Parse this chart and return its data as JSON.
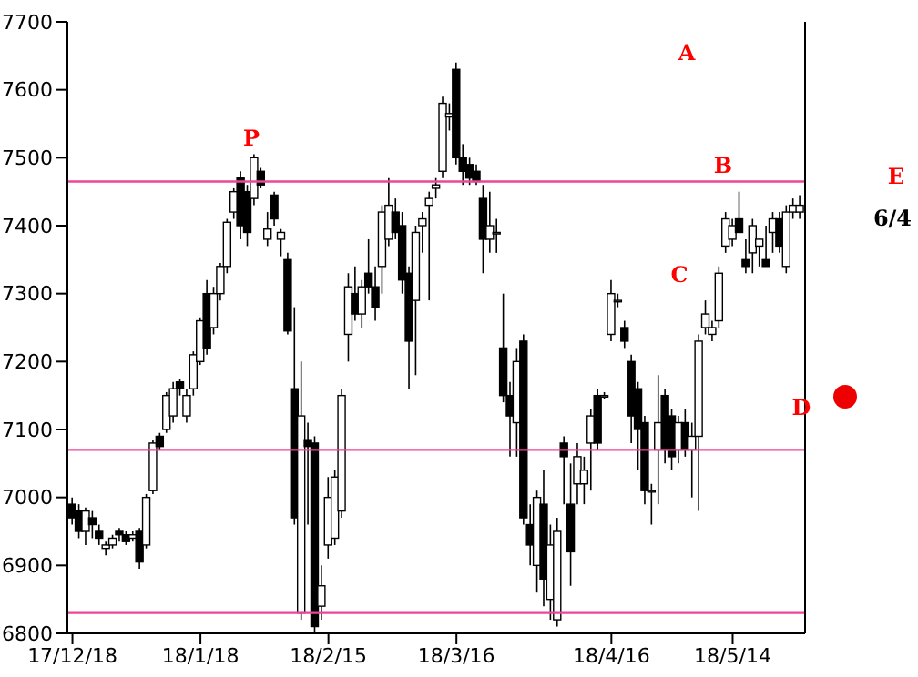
{
  "chart_data": {
    "type": "candlestick",
    "categories": [
      "17/12/18",
      null,
      null,
      null,
      null,
      null,
      null,
      null,
      null,
      null,
      null,
      null,
      null,
      null,
      null,
      null,
      null,
      null,
      null,
      "18/1/18",
      null,
      null,
      null,
      null,
      null,
      null,
      null,
      null,
      null,
      null,
      null,
      null,
      null,
      null,
      null,
      null,
      null,
      null,
      "18/2/15",
      null,
      null,
      null,
      null,
      null,
      null,
      null,
      null,
      null,
      null,
      null,
      null,
      null,
      null,
      null,
      null,
      null,
      null,
      "18/3/16",
      null,
      null,
      null,
      null,
      null,
      null,
      null,
      null,
      null,
      null,
      null,
      null,
      null,
      null,
      null,
      null,
      null,
      null,
      null,
      null,
      null,
      null,
      "18/4/16",
      null,
      null,
      null,
      null,
      null,
      null,
      null,
      null,
      null,
      null,
      null,
      null,
      null,
      null,
      null,
      null,
      null,
      "18/5/14",
      null,
      null,
      null,
      null,
      null,
      null,
      null,
      null,
      null,
      null
    ],
    "ohlc": [
      [
        6990,
        7000,
        6960,
        6970
      ],
      [
        6980,
        6990,
        6940,
        6950
      ],
      [
        6950,
        6985,
        6930,
        6980
      ],
      [
        6970,
        6980,
        6940,
        6960
      ],
      [
        6950,
        6960,
        6930,
        6940
      ],
      [
        6925,
        6935,
        6915,
        6930
      ],
      [
        6930,
        6945,
        6925,
        6940
      ],
      [
        6950,
        6955,
        6935,
        6945
      ],
      [
        6945,
        6950,
        6930,
        6935
      ],
      [
        6940,
        6950,
        6935,
        6945
      ],
      [
        6950,
        6955,
        6895,
        6905
      ],
      [
        6930,
        7005,
        6925,
        7000
      ],
      [
        7010,
        7085,
        7005,
        7080
      ],
      [
        7090,
        7095,
        7070,
        7075
      ],
      [
        7100,
        7155,
        7095,
        7150
      ],
      [
        7120,
        7170,
        7110,
        7160
      ],
      [
        7170,
        7175,
        7150,
        7160
      ],
      [
        7120,
        7160,
        7110,
        7150
      ],
      [
        7160,
        7215,
        7150,
        7210
      ],
      [
        7200,
        7265,
        7195,
        7260
      ],
      [
        7300,
        7320,
        7210,
        7220
      ],
      [
        7250,
        7310,
        7240,
        7300
      ],
      [
        7300,
        7345,
        7290,
        7340
      ],
      [
        7340,
        7410,
        7330,
        7405
      ],
      [
        7420,
        7455,
        7410,
        7450
      ],
      [
        7470,
        7480,
        7380,
        7400
      ],
      [
        7450,
        7460,
        7370,
        7390
      ],
      [
        7440,
        7505,
        7430,
        7500
      ],
      [
        7480,
        7485,
        7455,
        7460
      ],
      [
        7380,
        7420,
        7370,
        7395
      ],
      [
        7445,
        7450,
        7400,
        7410
      ],
      [
        7380,
        7395,
        7355,
        7390
      ],
      [
        7350,
        7360,
        7240,
        7245
      ],
      [
        7160,
        7280,
        6960,
        6970
      ],
      [
        6830,
        7200,
        6820,
        7120
      ],
      [
        7085,
        7110,
        6960,
        7075
      ],
      [
        7080,
        7090,
        6800,
        6810
      ],
      [
        6840,
        6900,
        6820,
        6870
      ],
      [
        6930,
        7030,
        6910,
        7000
      ],
      [
        6940,
        7040,
        6930,
        7030
      ],
      [
        6980,
        7160,
        6970,
        7150
      ],
      [
        7240,
        7330,
        7200,
        7310
      ],
      [
        7300,
        7340,
        7260,
        7270
      ],
      [
        7270,
        7320,
        7250,
        7310
      ],
      [
        7330,
        7380,
        7300,
        7310
      ],
      [
        7310,
        7340,
        7260,
        7280
      ],
      [
        7340,
        7430,
        7300,
        7420
      ],
      [
        7380,
        7470,
        7370,
        7430
      ],
      [
        7420,
        7440,
        7380,
        7390
      ],
      [
        7400,
        7420,
        7300,
        7320
      ],
      [
        7330,
        7340,
        7160,
        7230
      ],
      [
        7290,
        7400,
        7180,
        7390
      ],
      [
        7400,
        7420,
        7360,
        7410
      ],
      [
        7430,
        7450,
        7290,
        7440
      ],
      [
        7455,
        7470,
        7440,
        7460
      ],
      [
        7480,
        7590,
        7470,
        7580
      ],
      [
        7560,
        7580,
        7540,
        7565
      ],
      [
        7630,
        7640,
        7490,
        7500
      ],
      [
        7500,
        7520,
        7460,
        7480
      ],
      [
        7490,
        7500,
        7460,
        7470
      ],
      [
        7480,
        7490,
        7460,
        7465
      ],
      [
        7440,
        7460,
        7330,
        7380
      ],
      [
        7380,
        7450,
        7360,
        7400
      ],
      [
        7390,
        7410,
        7360,
        7390
      ],
      [
        7220,
        7300,
        7140,
        7150
      ],
      [
        7150,
        7170,
        7060,
        7120
      ],
      [
        7110,
        7220,
        7060,
        7200
      ],
      [
        7230,
        7240,
        6960,
        6970
      ],
      [
        6960,
        6990,
        6900,
        6930
      ],
      [
        6900,
        7010,
        6860,
        7000
      ],
      [
        6990,
        7040,
        6840,
        6880
      ],
      [
        6850,
        6960,
        6820,
        6930
      ],
      [
        6820,
        6970,
        6810,
        6950
      ],
      [
        7080,
        7090,
        6990,
        7060
      ],
      [
        6990,
        7050,
        6870,
        6920
      ],
      [
        7020,
        7080,
        6990,
        7060
      ],
      [
        7020,
        7060,
        6990,
        7040
      ],
      [
        7080,
        7130,
        7010,
        7120
      ],
      [
        7150,
        7160,
        7070,
        7080
      ],
      [
        7150,
        7155,
        7145,
        7150
      ],
      [
        7240,
        7320,
        7230,
        7300
      ],
      [
        7290,
        7300,
        7280,
        7290
      ],
      [
        7250,
        7260,
        7220,
        7230
      ],
      [
        7200,
        7210,
        7080,
        7120
      ],
      [
        7160,
        7170,
        7040,
        7100
      ],
      [
        7110,
        7120,
        6990,
        7010
      ],
      [
        7010,
        7020,
        6960,
        7010
      ],
      [
        7070,
        7180,
        6990,
        7110
      ],
      [
        7150,
        7160,
        7050,
        7070
      ],
      [
        7120,
        7130,
        7040,
        7060
      ],
      [
        7070,
        7120,
        7050,
        7110
      ],
      [
        7110,
        7130,
        7060,
        7070
      ],
      [
        7070,
        7110,
        7000,
        7090
      ],
      [
        7090,
        7240,
        6980,
        7230
      ],
      [
        7250,
        7290,
        7240,
        7270
      ],
      [
        7240,
        7260,
        7230,
        7250
      ],
      [
        7260,
        7340,
        7250,
        7330
      ],
      [
        7370,
        7420,
        7360,
        7410
      ],
      [
        7380,
        7410,
        7370,
        7400
      ],
      [
        7410,
        7450,
        7390,
        7390
      ],
      [
        7350,
        7380,
        7330,
        7340
      ],
      [
        7360,
        7410,
        7330,
        7400
      ],
      [
        7370,
        7380,
        7340,
        7380
      ],
      [
        7350,
        7400,
        7340,
        7340
      ],
      [
        7390,
        7420,
        7360,
        7410
      ],
      [
        7410,
        7420,
        7360,
        7370
      ],
      [
        7340,
        7430,
        7330,
        7420
      ],
      [
        7420,
        7440,
        7410,
        7430
      ],
      [
        7420,
        7445,
        7410,
        7430
      ]
    ],
    "ylim": [
      6800,
      7700
    ],
    "yticks": [
      6800,
      6900,
      7000,
      7100,
      7200,
      7300,
      7400,
      7500,
      7600,
      7700
    ],
    "ref_lines": [
      {
        "axis": "y",
        "value": 7465,
        "color": "#ee4499"
      },
      {
        "axis": "y",
        "value": 7070,
        "color": "#ee4499"
      },
      {
        "axis": "y",
        "value": 6830,
        "color": "#ee4499"
      }
    ],
    "annotations": [
      "P",
      "A",
      "B",
      "C",
      "D",
      "E",
      "6/4"
    ],
    "grid": false,
    "legend": false
  }
}
